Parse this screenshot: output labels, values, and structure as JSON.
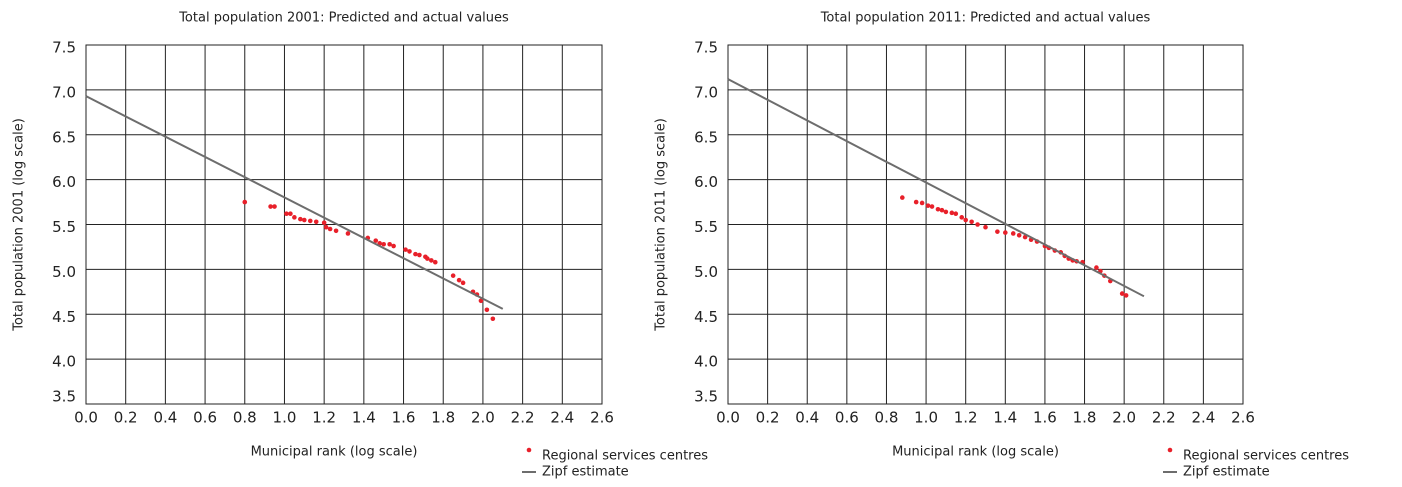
{
  "chart_data": [
    {
      "type": "scatter",
      "title": "Total population 2001: Predicted and actual values",
      "x_label": "Municipal rank (log scale)",
      "y_label": "Total population 2001 (log scale)",
      "xlim": [
        0,
        2.6
      ],
      "ylim": [
        3.5,
        7.5
      ],
      "xticks": [
        {
          "value": 0,
          "label": "0.0"
        },
        0.2,
        0.4,
        0.6,
        0.8,
        {
          "value": 1,
          "label": "1.0"
        },
        1.2,
        1.4,
        1.6,
        1.8,
        {
          "value": 2,
          "label": "2.0"
        },
        2.2,
        2.4,
        2.6
      ],
      "yticks": [
        3.5,
        {
          "value": 4,
          "label": "4.0"
        },
        4.5,
        {
          "value": 5,
          "label": "5.0"
        },
        5.5,
        {
          "value": 6,
          "label": "6.0"
        },
        6.5,
        {
          "value": 7,
          "label": "7.0"
        },
        7.5
      ],
      "grid": true,
      "legend": "bottom-right",
      "series": [
        {
          "name": "Regional services centres",
          "type": "scatter",
          "color": "#e8202a",
          "x": [
            0.8,
            0.93,
            0.95,
            1.01,
            1.03,
            1.05,
            1.08,
            1.1,
            1.13,
            1.16,
            1.2,
            1.21,
            1.23,
            1.26,
            1.32,
            1.42,
            1.46,
            1.48,
            1.5,
            1.53,
            1.55,
            1.61,
            1.63,
            1.66,
            1.68,
            1.71,
            1.72,
            1.74,
            1.76,
            1.85,
            1.88,
            1.9,
            1.95,
            1.97,
            1.99,
            2.02,
            2.05
          ],
          "values": [
            5.75,
            5.7,
            5.7,
            5.62,
            5.62,
            5.58,
            5.56,
            5.55,
            5.54,
            5.53,
            5.52,
            5.47,
            5.45,
            5.43,
            5.4,
            5.35,
            5.32,
            5.29,
            5.28,
            5.28,
            5.26,
            5.22,
            5.2,
            5.17,
            5.16,
            5.14,
            5.12,
            5.1,
            5.08,
            4.93,
            4.88,
            4.85,
            4.75,
            4.72,
            4.65,
            4.55,
            4.45
          ]
        },
        {
          "name": "Zipf estimate",
          "type": "line",
          "color": "#6d6d6d",
          "x": [
            0,
            2.1
          ],
          "values": [
            6.93,
            4.56
          ]
        }
      ]
    },
    {
      "type": "scatter",
      "title": "Total population 2011: Predicted and actual values",
      "x_label": "Municipal rank (log scale)",
      "y_label": "Total population 2011 (log scale)",
      "xlim": [
        0,
        2.6
      ],
      "ylim": [
        3.5,
        7.5
      ],
      "xticks": [
        {
          "value": 0,
          "label": "0.0"
        },
        0.2,
        0.4,
        0.6,
        0.8,
        {
          "value": 1,
          "label": "1.0"
        },
        1.2,
        1.4,
        1.6,
        1.8,
        {
          "value": 2,
          "label": "2.0"
        },
        2.2,
        2.4,
        2.6
      ],
      "yticks": [
        3.5,
        {
          "value": 4,
          "label": "4.0"
        },
        4.5,
        {
          "value": 5,
          "label": "5.0"
        },
        5.5,
        {
          "value": 6,
          "label": "6.0"
        },
        6.5,
        {
          "value": 7,
          "label": "7.0"
        },
        7.5
      ],
      "grid": true,
      "legend": "bottom-right",
      "series": [
        {
          "name": "Regional services centres",
          "type": "scatter",
          "color": "#e8202a",
          "x": [
            0.88,
            0.95,
            0.98,
            1.01,
            1.03,
            1.06,
            1.08,
            1.1,
            1.13,
            1.15,
            1.18,
            1.2,
            1.23,
            1.26,
            1.3,
            1.36,
            1.4,
            1.44,
            1.47,
            1.5,
            1.53,
            1.56,
            1.6,
            1.62,
            1.65,
            1.68,
            1.7,
            1.72,
            1.74,
            1.76,
            1.79,
            1.86,
            1.88,
            1.9,
            1.93,
            1.99,
            2.01
          ],
          "values": [
            5.8,
            5.75,
            5.74,
            5.71,
            5.7,
            5.67,
            5.66,
            5.64,
            5.63,
            5.62,
            5.58,
            5.55,
            5.53,
            5.5,
            5.47,
            5.42,
            5.41,
            5.4,
            5.38,
            5.36,
            5.33,
            5.31,
            5.26,
            5.24,
            5.21,
            5.19,
            5.15,
            5.12,
            5.1,
            5.09,
            5.08,
            5.02,
            4.98,
            4.93,
            4.87,
            4.73,
            4.71
          ]
        },
        {
          "name": "Zipf estimate",
          "type": "line",
          "color": "#6d6d6d",
          "x": [
            0,
            2.1
          ],
          "values": [
            7.12,
            4.7
          ]
        }
      ]
    }
  ]
}
